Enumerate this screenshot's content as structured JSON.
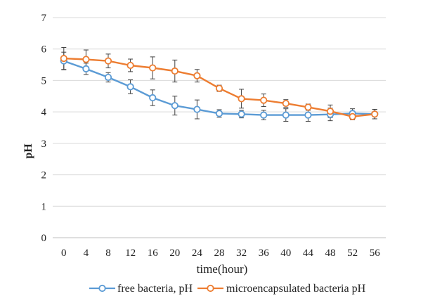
{
  "chart_data": {
    "type": "line",
    "title": "",
    "xlabel": "time(hour)",
    "ylabel": "pH",
    "x": [
      0,
      4,
      8,
      12,
      16,
      20,
      24,
      28,
      32,
      36,
      40,
      44,
      48,
      52,
      56
    ],
    "ylim": [
      0,
      7
    ],
    "yticks": [
      0,
      1,
      2,
      3,
      4,
      5,
      6,
      7
    ],
    "grid": "horizontal",
    "legend_position": "bottom",
    "series": [
      {
        "name": "free bacteria, pH",
        "color": "#5b9bd5",
        "marker": "circle-open",
        "values": [
          5.62,
          5.37,
          5.1,
          4.8,
          4.45,
          4.2,
          4.08,
          3.95,
          3.93,
          3.9,
          3.9,
          3.9,
          3.92,
          3.95,
          3.93
        ],
        "errors": [
          0.28,
          0.18,
          0.15,
          0.22,
          0.25,
          0.3,
          0.3,
          0.12,
          0.12,
          0.15,
          0.2,
          0.2,
          0.2,
          0.15,
          0.15
        ]
      },
      {
        "name": "microencapsulated bacteria pH",
        "color": "#ed7d31",
        "marker": "circle-open",
        "values": [
          5.7,
          5.67,
          5.62,
          5.48,
          5.4,
          5.3,
          5.15,
          4.75,
          4.42,
          4.37,
          4.27,
          4.15,
          4.02,
          3.85,
          3.93
        ],
        "errors": [
          0.35,
          0.3,
          0.22,
          0.2,
          0.35,
          0.35,
          0.2,
          0.1,
          0.3,
          0.2,
          0.12,
          0.1,
          0.2,
          0.1,
          0.15
        ]
      }
    ]
  }
}
